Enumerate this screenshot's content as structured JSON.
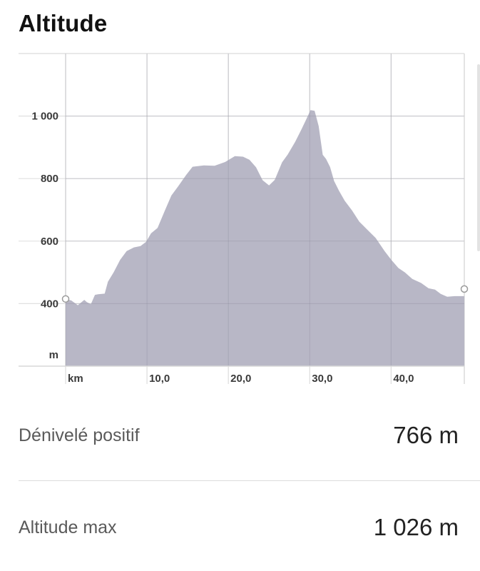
{
  "header": {
    "title": "Altitude"
  },
  "chart_data": {
    "type": "area",
    "title": "",
    "xlabel": "km",
    "ylabel": "m",
    "xlim": [
      0,
      49
    ],
    "ylim": [
      200,
      1200
    ],
    "x_ticks": [
      {
        "value": 0,
        "label": "km"
      },
      {
        "value": 10,
        "label": "10,0"
      },
      {
        "value": 20,
        "label": "20,0"
      },
      {
        "value": 30,
        "label": "30,0"
      },
      {
        "value": 40,
        "label": "40,0"
      }
    ],
    "y_ticks": [
      {
        "value": 1000,
        "label": "1 000"
      },
      {
        "value": 800,
        "label": "800"
      },
      {
        "value": 600,
        "label": "600"
      },
      {
        "value": 400,
        "label": "400"
      }
    ],
    "grid": true,
    "fill_color": "#b8b7c6",
    "series": [
      {
        "x": [
          0,
          0.7,
          1.5,
          2.3,
          2.6,
          3.1,
          3.6,
          4.0,
          4.8,
          5.2,
          5.9,
          6.7,
          7.5,
          8.4,
          9.2,
          9.9,
          10.5,
          11.3,
          12.2,
          13.0,
          13.8,
          14.8,
          15.6,
          17.0,
          18.3,
          19.6,
          20.8,
          21.8,
          22.6,
          23.4,
          24.2,
          25.0,
          25.7,
          26.6,
          27.3,
          28.2,
          29.0,
          29.6,
          30.1,
          30.6,
          31.1,
          31.6,
          32.0,
          32.5,
          33.0,
          33.6,
          34.3,
          35.2,
          36.1,
          37.1,
          38.1,
          39.2,
          40.0,
          40.9,
          41.7,
          42.6,
          43.7,
          44.6,
          45.4,
          46.1,
          46.9,
          47.8,
          49.0
        ],
        "y": [
          415,
          410,
          395,
          412,
          405,
          398,
          428,
          430,
          432,
          470,
          500,
          540,
          568,
          580,
          584,
          598,
          625,
          642,
          698,
          746,
          774,
          811,
          838,
          842,
          841,
          853,
          872,
          870,
          860,
          836,
          795,
          778,
          796,
          852,
          877,
          917,
          958,
          991,
          1019,
          1017,
          968,
          876,
          863,
          837,
          792,
          761,
          729,
          698,
          662,
          636,
          610,
          568,
          541,
          514,
          500,
          479,
          466,
          449,
          445,
          431,
          422,
          424,
          424
        ]
      }
    ]
  },
  "stats": [
    {
      "label": "Dénivelé positif",
      "value": "766 m"
    },
    {
      "label": "Altitude max",
      "value": "1 026 m"
    }
  ]
}
